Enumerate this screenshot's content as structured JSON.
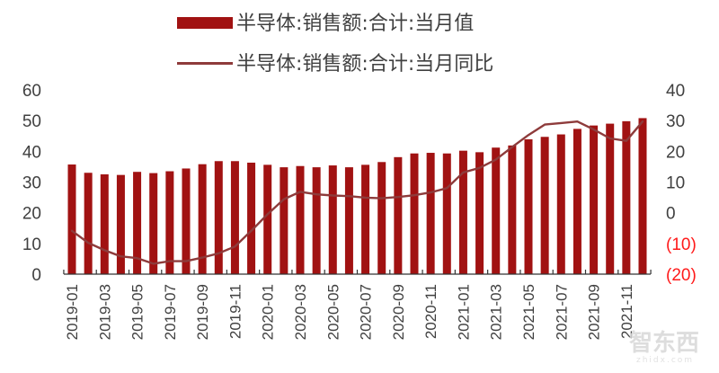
{
  "chart_data": {
    "type": "bar+line",
    "title": "",
    "legend": [
      {
        "name": "半导体:销售额:合计:当月值",
        "type": "bar",
        "color": "#a11212"
      },
      {
        "name": "半导体:销售额:合计:当月同比",
        "type": "line",
        "color": "#8e3b3b"
      }
    ],
    "legend_position": "top",
    "categories": [
      "2019-01",
      "2019-02",
      "2019-03",
      "2019-04",
      "2019-05",
      "2019-06",
      "2019-07",
      "2019-08",
      "2019-09",
      "2019-10",
      "2019-11",
      "2019-12",
      "2020-01",
      "2020-02",
      "2020-03",
      "2020-04",
      "2020-05",
      "2020-06",
      "2020-07",
      "2020-08",
      "2020-09",
      "2020-10",
      "2020-11",
      "2020-12",
      "2021-01",
      "2021-02",
      "2021-03",
      "2021-04",
      "2021-05",
      "2021-06",
      "2021-07",
      "2021-08",
      "2021-09",
      "2021-10",
      "2021-11",
      "2021-12"
    ],
    "x_tick_labels": [
      "2019-01",
      "2019-03",
      "2019-05",
      "2019-07",
      "2019-09",
      "2019-11",
      "2020-01",
      "2020-03",
      "2020-05",
      "2020-07",
      "2020-09",
      "2020-11",
      "2021-01",
      "2021-03",
      "2021-05",
      "2021-07",
      "2021-09",
      "2021-11"
    ],
    "series": [
      {
        "name": "半导体:销售额:合计:当月值",
        "axis": "left",
        "type": "bar",
        "values": [
          35.7,
          33.0,
          32.5,
          32.3,
          33.3,
          32.9,
          33.5,
          34.4,
          35.8,
          36.8,
          36.8,
          36.3,
          35.6,
          34.8,
          35.2,
          34.8,
          35.4,
          34.8,
          35.6,
          36.5,
          38.1,
          39.3,
          39.5,
          39.3,
          40.2,
          39.7,
          41.2,
          41.9,
          43.9,
          44.7,
          45.5,
          47.3,
          48.4,
          49.0,
          49.8,
          50.8
        ]
      },
      {
        "name": "半导体:销售额:合计:当月同比",
        "axis": "right",
        "type": "line",
        "values": [
          -5.9,
          -9.8,
          -12.2,
          -14.2,
          -14.8,
          -16.6,
          -15.8,
          -15.8,
          -14.6,
          -13.2,
          -11.0,
          -5.9,
          -0.5,
          4.4,
          6.8,
          6.0,
          5.6,
          5.4,
          4.9,
          4.7,
          5.1,
          5.7,
          6.6,
          8.0,
          13.1,
          14.6,
          17.3,
          21.4,
          25.3,
          28.7,
          29.2,
          29.7,
          27.1,
          24.2,
          23.4,
          29.7
        ]
      }
    ],
    "left_axis": {
      "ylim": [
        0,
        60
      ],
      "ticks": [
        "60",
        "50",
        "40",
        "30",
        "20",
        "10",
        "0"
      ],
      "values": [
        60,
        50,
        40,
        30,
        20,
        10,
        0
      ]
    },
    "right_axis": {
      "ylim": [
        -20,
        40
      ],
      "ticks": [
        "40",
        "30",
        "20",
        "10",
        "0",
        "(10)",
        "(20)"
      ],
      "values": [
        40,
        30,
        20,
        10,
        0,
        -10,
        -20
      ],
      "negative_color": "#ff1a1a"
    },
    "xlabel": "",
    "ylabel": "",
    "grid": false
  },
  "watermark": {
    "text": "智东西",
    "sub": "zhidx.com"
  }
}
